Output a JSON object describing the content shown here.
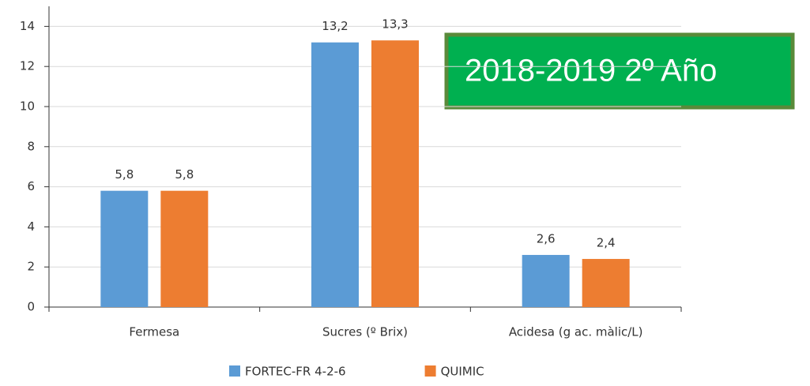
{
  "chart_data": {
    "type": "bar",
    "annotation": "2018-2019 2º Año",
    "categories": [
      "Fermesa",
      "Sucres (º Brix)",
      "Acidesa (g ac. màlic/L)"
    ],
    "series": [
      {
        "name": "FORTEC-FR 4-2-6",
        "color": "#5b9bd5",
        "values": [
          5.8,
          13.2,
          2.6
        ],
        "value_labels": [
          "5,8",
          "13,2",
          "2,6"
        ]
      },
      {
        "name": "QUIMIC",
        "color": "#ed7d31",
        "values": [
          5.8,
          13.3,
          2.4
        ],
        "value_labels": [
          "5,8",
          "13,3",
          "2,4"
        ]
      }
    ],
    "ylim": [
      0,
      15
    ],
    "yticks": [
      0,
      2,
      4,
      6,
      8,
      10,
      12,
      14
    ],
    "grid": true
  }
}
